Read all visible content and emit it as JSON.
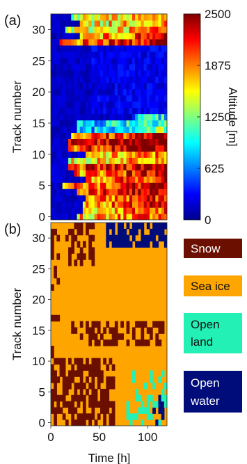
{
  "chart_data": [
    {
      "panel_label": "(a)",
      "type": "heatmap",
      "ylabel": "Track number",
      "y_ticks": [
        "0",
        "5",
        "10",
        "15",
        "20",
        "25",
        "30"
      ],
      "ylim": [
        0,
        32
      ],
      "xlim": [
        0,
        120
      ],
      "colorbar": {
        "label": "Altitude [m]",
        "ticks": [
          "0",
          "625",
          "1250",
          "1875",
          "2500"
        ],
        "range": [
          0,
          2500
        ]
      }
    },
    {
      "panel_label": "(b)",
      "type": "heatmap",
      "ylabel": "Track number",
      "xlabel": "Time [h]",
      "x_ticks": [
        "0",
        "50",
        "100"
      ],
      "y_ticks": [
        "0",
        "5",
        "10",
        "15",
        "20",
        "25",
        "30"
      ],
      "ylim": [
        0,
        32
      ],
      "xlim": [
        0,
        120
      ],
      "legend": [
        {
          "label": "Snow",
          "color": "#6b0f00"
        },
        {
          "label": "Sea ice",
          "color": "#ffa500"
        },
        {
          "label": "Open land",
          "color": "#22f0b4"
        },
        {
          "label": "Open water",
          "color": "#000c7a"
        }
      ]
    }
  ]
}
